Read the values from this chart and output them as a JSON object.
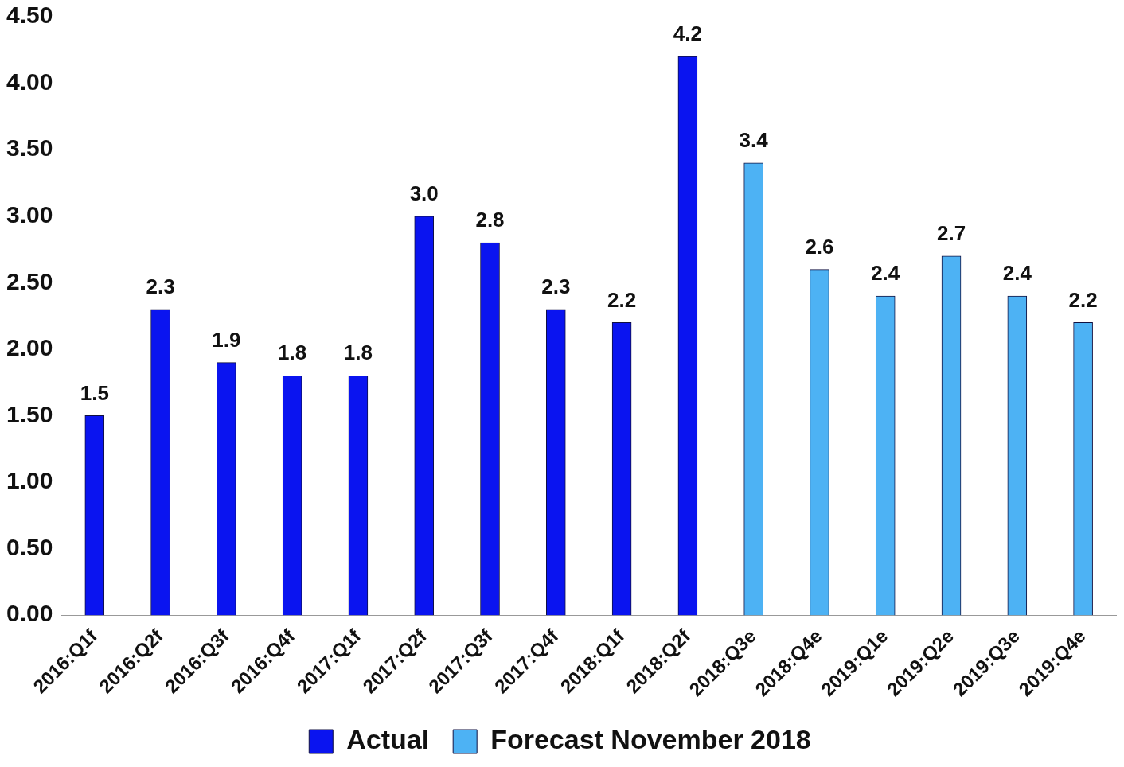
{
  "chart_data": {
    "type": "bar",
    "categories": [
      "2016:Q1f",
      "2016:Q2f",
      "2016:Q3f",
      "2016:Q4f",
      "2017:Q1f",
      "2017:Q2f",
      "2017:Q3f",
      "2017:Q4f",
      "2018:Q1f",
      "2018:Q2f",
      "2018:Q3e",
      "2018:Q4e",
      "2019:Q1e",
      "2019:Q2e",
      "2019:Q3e",
      "2019:Q4e"
    ],
    "series": [
      {
        "name": "Actual",
        "color": "#0a14f0",
        "values": [
          1.5,
          2.3,
          1.9,
          1.8,
          1.8,
          3.0,
          2.8,
          2.3,
          2.2,
          4.2,
          null,
          null,
          null,
          null,
          null,
          null
        ],
        "value_labels": [
          "1.5",
          "2.3",
          "1.9",
          "1.8",
          "1.8",
          "3.0",
          "2.8",
          "2.3",
          "2.2",
          "4.2",
          null,
          null,
          null,
          null,
          null,
          null
        ]
      },
      {
        "name": "Forecast November 2018",
        "color": "#4db2f4",
        "values": [
          null,
          null,
          null,
          null,
          null,
          null,
          null,
          null,
          null,
          null,
          3.4,
          2.6,
          2.4,
          2.7,
          2.4,
          2.2
        ],
        "value_labels": [
          null,
          null,
          null,
          null,
          null,
          null,
          null,
          null,
          null,
          null,
          "3.4",
          "2.6",
          "2.4",
          "2.7",
          "2.4",
          "2.2"
        ]
      }
    ],
    "ylim": [
      0,
      4.5
    ],
    "yticks": [
      {
        "value": 0,
        "label": "0.00"
      },
      {
        "value": 0.5,
        "label": "0.50"
      },
      {
        "value": 1,
        "label": "1.00"
      },
      {
        "value": 1.5,
        "label": "1.50"
      },
      {
        "value": 2,
        "label": "2.00"
      },
      {
        "value": 2.5,
        "label": "2.50"
      },
      {
        "value": 3,
        "label": "3.00"
      },
      {
        "value": 3.5,
        "label": "3.50"
      },
      {
        "value": 4,
        "label": "4.00"
      },
      {
        "value": 4.5,
        "label": "4.50"
      }
    ],
    "grid": false,
    "legend": "bottom"
  }
}
